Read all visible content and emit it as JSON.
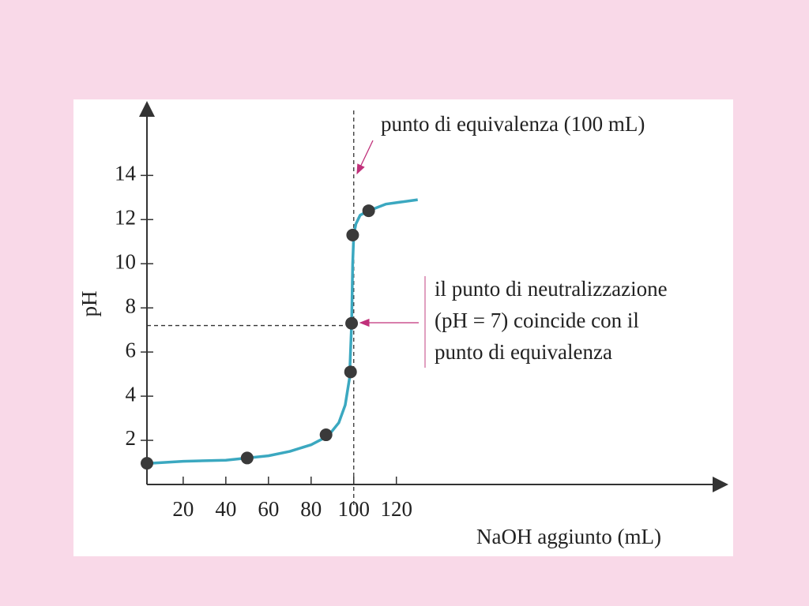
{
  "chart_data": {
    "type": "line",
    "x_label": "NaOH aggiunto (mL)",
    "y_label": "pH",
    "xlim": [
      3,
      275
    ],
    "ylim": [
      0,
      17.3
    ],
    "xticks": [
      20,
      40,
      60,
      80,
      100,
      120
    ],
    "yticks": [
      2,
      4,
      6,
      8,
      10,
      12,
      14
    ],
    "curve": {
      "color": "#3ba8c0",
      "x": [
        3,
        20,
        40,
        60,
        70,
        80,
        88,
        93,
        96,
        98,
        99,
        99.5,
        100,
        101,
        103,
        107,
        115,
        130
      ],
      "y": [
        0.95,
        1.05,
        1.1,
        1.3,
        1.5,
        1.8,
        2.2,
        2.8,
        3.6,
        4.8,
        7.3,
        10,
        11.3,
        11.8,
        12.2,
        12.4,
        12.7,
        12.9
      ]
    },
    "points": {
      "color": "#3a3a3a",
      "x": [
        3,
        50,
        87,
        98.5,
        99,
        99.5,
        107
      ],
      "y": [
        0.96,
        1.2,
        2.25,
        5.1,
        7.3,
        11.3,
        12.4
      ]
    },
    "equivalence_x": 100,
    "neutral_y": 7.2,
    "annotations": [
      {
        "lines": [
          "punto di equivalenza (100 mL)"
        ]
      },
      {
        "lines": [
          "il punto di neutralizzazione",
          "(pH = 7) coincide con il",
          "punto di equivalenza"
        ]
      }
    ]
  }
}
